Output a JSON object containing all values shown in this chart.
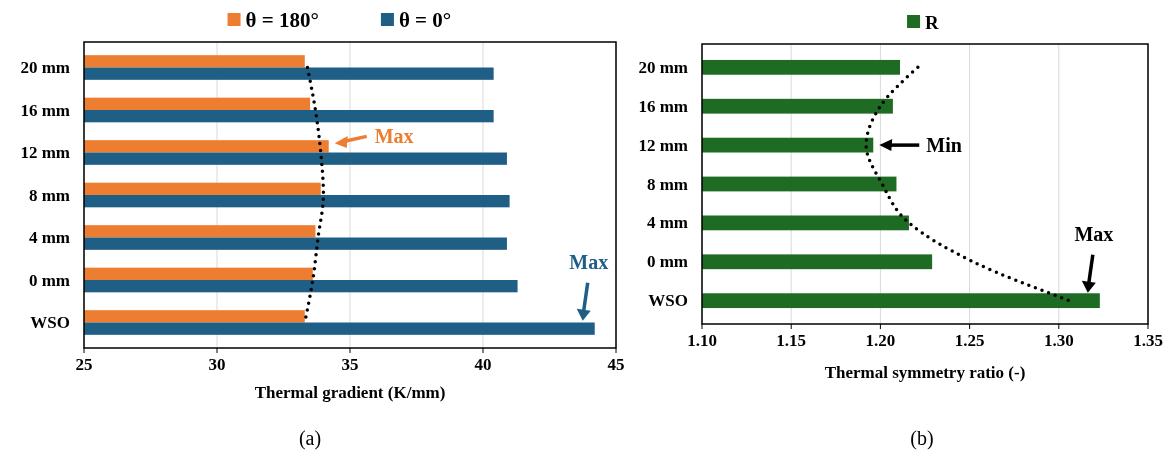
{
  "chart_data": [
    {
      "type": "bar",
      "orientation": "horizontal",
      "xlabel": "Thermal gradient (K/mm)",
      "categories": [
        "20 mm",
        "16 mm",
        "12 mm",
        "8 mm",
        "4 mm",
        "0 mm",
        "WSO"
      ],
      "series": [
        {
          "name": "θ = 180°",
          "color": "#ed7d31",
          "values": [
            33.3,
            33.5,
            34.2,
            33.9,
            33.7,
            33.6,
            33.3
          ]
        },
        {
          "name": "θ = 0°",
          "color": "#1f5f86",
          "values": [
            40.4,
            40.4,
            40.9,
            41.0,
            40.9,
            41.3,
            44.2
          ]
        },
        {
          "type": "line",
          "color": "#000000",
          "line_style": "dotted",
          "marker": "none",
          "values": [
            33.4,
            33.7,
            33.9,
            34.0,
            33.8,
            33.6,
            33.3
          ]
        }
      ],
      "xlim": [
        25,
        45
      ],
      "xticks": [
        25,
        30,
        35,
        40,
        45
      ],
      "grid": "x",
      "legend": "top",
      "annotations": [
        {
          "text": "Max",
          "x": 34.2
        },
        {
          "text": "Max",
          "x": 44.2,
          "y": "WSO"
        },
        "(a)"
      ]
    },
    {
      "type": "bar",
      "orientation": "horizontal",
      "xlabel": "Thermal symmetry ratio  (-)",
      "categories": [
        "20 mm",
        "16 mm",
        "12 mm",
        "8 mm",
        "4 mm",
        "0 mm",
        "WSO"
      ],
      "series": [
        {
          "name": "R",
          "color": "#1e6b24",
          "values": [
            1.211,
            1.207,
            1.196,
            1.209,
            1.216,
            1.229,
            1.323
          ]
        },
        {
          "type": "line",
          "color": "#000000",
          "line_style": "dotted",
          "marker": "none",
          "values": [
            1.221,
            1.2,
            1.192,
            1.201,
            1.216,
            1.252,
            1.306
          ]
        }
      ],
      "xlim": [
        1.1,
        1.35
      ],
      "xticks": [
        {
          "value": 1.1,
          "label": "1.10"
        },
        1.15,
        {
          "value": 1.2,
          "label": "1.20"
        },
        1.25,
        {
          "value": 1.3,
          "label": "1.30"
        },
        1.35
      ],
      "grid": "x",
      "legend": "top",
      "annotations": [
        {
          "text": "Min",
          "x": 1.196
        },
        {
          "text": "Max",
          "x": 1.323,
          "y": "WSO"
        },
        "(b)"
      ]
    }
  ]
}
